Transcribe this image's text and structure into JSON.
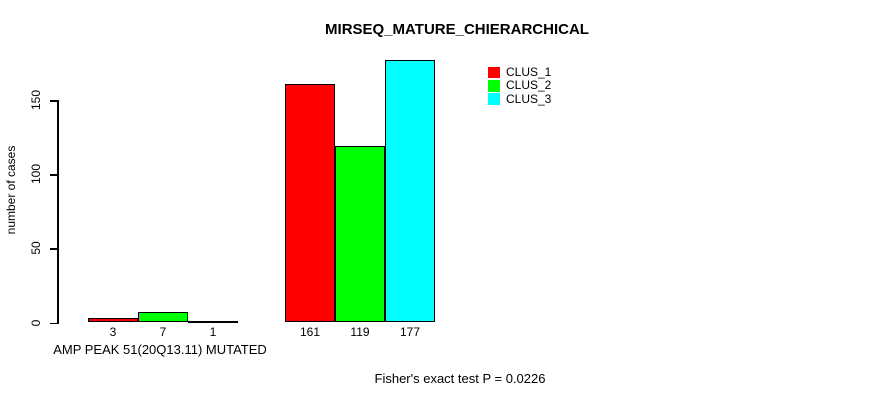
{
  "chart_data": {
    "type": "bar",
    "title": "MIRSEQ_MATURE_CHIERARCHICAL",
    "ylabel": "number of cases",
    "xlabel": "AMP PEAK 51(20Q13.11) MUTATED",
    "annotation": "Fisher's exact test P = 0.0226",
    "categories": [
      "AMP PEAK 51(20Q13.11) MUTATED",
      ""
    ],
    "series": [
      {
        "name": "CLUS_1",
        "color": "#ff0000",
        "values": [
          3,
          161
        ]
      },
      {
        "name": "CLUS_2",
        "color": "#00ff00",
        "values": [
          7,
          119
        ]
      },
      {
        "name": "CLUS_3",
        "color": "#00ffff",
        "values": [
          1,
          177
        ]
      }
    ],
    "yticks": [
      0,
      50,
      100,
      150
    ],
    "ylim": [
      0,
      177
    ],
    "bar_value_labels": true,
    "legend_position": "top-right",
    "grid": false,
    "axis_color": "#000000",
    "background": "#ffffff"
  }
}
